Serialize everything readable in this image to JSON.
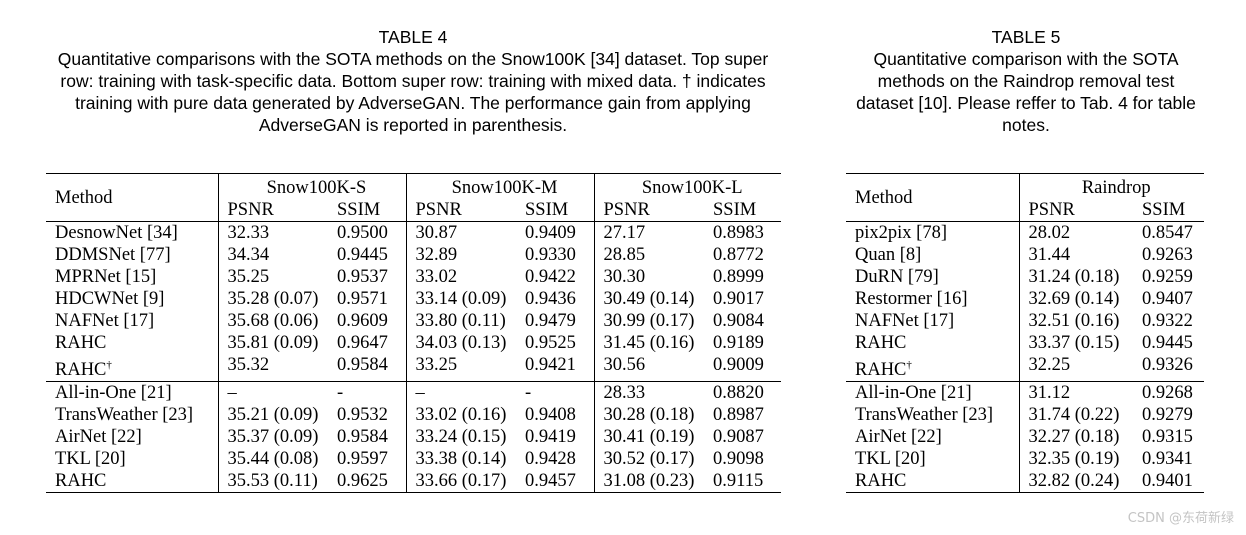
{
  "table4": {
    "title": "TABLE 4",
    "caption_lines": [
      "Quantitative comparisons with the SOTA methods on the Snow100K [34] dataset. Top super",
      "row: training with task-specific data. Bottom super row: training with mixed data. † indicates",
      "training with pure data generated by AdverseGAN. The performance gain from applying",
      "AdverseGAN is reported in parenthesis."
    ],
    "header": {
      "method": "Method",
      "groups": [
        "Snow100K-S",
        "Snow100K-M",
        "Snow100K-L"
      ],
      "psnr": "PSNR",
      "ssim": "SSIM"
    },
    "top_rows": [
      {
        "method": "DesnowNet [34]",
        "dagger": "",
        "values": [
          "32.33",
          "0.9500",
          "30.87",
          "0.9409",
          "27.17",
          "0.8983"
        ]
      },
      {
        "method": "DDMSNet [77]",
        "dagger": "",
        "values": [
          "34.34",
          "0.9445",
          "32.89",
          "0.9330",
          "28.85",
          "0.8772"
        ]
      },
      {
        "method": "MPRNet [15]",
        "dagger": "",
        "values": [
          "35.25",
          "0.9537",
          "33.02",
          "0.9422",
          "30.30",
          "0.8999"
        ]
      },
      {
        "method": "HDCWNet [9]",
        "dagger": "",
        "values": [
          "35.28 (0.07)",
          "0.9571",
          "33.14 (0.09)",
          "0.9436",
          "30.49 (0.14)",
          "0.9017"
        ]
      },
      {
        "method": "NAFNet [17]",
        "dagger": "",
        "values": [
          "35.68 (0.06)",
          "0.9609",
          "33.80 (0.11)",
          "0.9479",
          "30.99 (0.17)",
          "0.9084"
        ]
      },
      {
        "method": "RAHC",
        "dagger": "",
        "values": [
          "35.81 (0.09)",
          "0.9647",
          "34.03 (0.13)",
          "0.9525",
          "31.45 (0.16)",
          "0.9189"
        ]
      },
      {
        "method": "RAHC",
        "dagger": "†",
        "values": [
          "35.32",
          "0.9584",
          "33.25",
          "0.9421",
          "30.56",
          "0.9009"
        ]
      }
    ],
    "bottom_rows": [
      {
        "method": "All-in-One [21]",
        "dagger": "",
        "values": [
          "–",
          "-",
          "–",
          "-",
          "28.33",
          "0.8820"
        ]
      },
      {
        "method": "TransWeather [23]",
        "dagger": "",
        "values": [
          "35.21 (0.09)",
          "0.9532",
          "33.02 (0.16)",
          "0.9408",
          "30.28 (0.18)",
          "0.8987"
        ]
      },
      {
        "method": "AirNet [22]",
        "dagger": "",
        "values": [
          "35.37 (0.09)",
          "0.9584",
          "33.24 (0.15)",
          "0.9419",
          "30.41 (0.19)",
          "0.9087"
        ]
      },
      {
        "method": "TKL [20]",
        "dagger": "",
        "values": [
          "35.44 (0.08)",
          "0.9597",
          "33.38 (0.14)",
          "0.9428",
          "30.52 (0.17)",
          "0.9098"
        ]
      },
      {
        "method": "RAHC",
        "dagger": "",
        "values": [
          "35.53 (0.11)",
          "0.9625",
          "33.66 (0.17)",
          "0.9457",
          "31.08 (0.23)",
          "0.9115"
        ]
      }
    ]
  },
  "table5": {
    "title": "TABLE 5",
    "caption_lines": [
      "Quantitative comparison with the SOTA",
      "methods on the Raindrop removal test",
      "dataset [10]. Please reffer to Tab. 4 for table",
      "notes."
    ],
    "header": {
      "method": "Method",
      "groups": [
        "Raindrop"
      ],
      "psnr": "PSNR",
      "ssim": "SSIM"
    },
    "top_rows": [
      {
        "method": "pix2pix [78]",
        "dagger": "",
        "values": [
          "28.02",
          "0.8547"
        ]
      },
      {
        "method": "Quan [8]",
        "dagger": "",
        "values": [
          "31.44",
          "0.9263"
        ]
      },
      {
        "method": "DuRN [79]",
        "dagger": "",
        "values": [
          "31.24 (0.18)",
          "0.9259"
        ]
      },
      {
        "method": "Restormer [16]",
        "dagger": "",
        "values": [
          "32.69 (0.14)",
          "0.9407"
        ]
      },
      {
        "method": "NAFNet [17]",
        "dagger": "",
        "values": [
          "32.51 (0.16)",
          "0.9322"
        ]
      },
      {
        "method": "RAHC",
        "dagger": "",
        "values": [
          "33.37 (0.15)",
          "0.9445"
        ]
      },
      {
        "method": "RAHC",
        "dagger": "†",
        "values": [
          "32.25",
          "0.9326"
        ]
      }
    ],
    "bottom_rows": [
      {
        "method": "All-in-One [21]",
        "dagger": "",
        "values": [
          "31.12",
          "0.9268"
        ]
      },
      {
        "method": "TransWeather [23]",
        "dagger": "",
        "values": [
          "31.74 (0.22)",
          "0.9279"
        ]
      },
      {
        "method": "AirNet [22]",
        "dagger": "",
        "values": [
          "32.27 (0.18)",
          "0.9315"
        ]
      },
      {
        "method": "TKL [20]",
        "dagger": "",
        "values": [
          "32.35 (0.19)",
          "0.9341"
        ]
      },
      {
        "method": "RAHC",
        "dagger": "",
        "values": [
          "32.82 (0.24)",
          "0.9401"
        ]
      }
    ]
  },
  "watermark": "CSDN @东荷新绿"
}
